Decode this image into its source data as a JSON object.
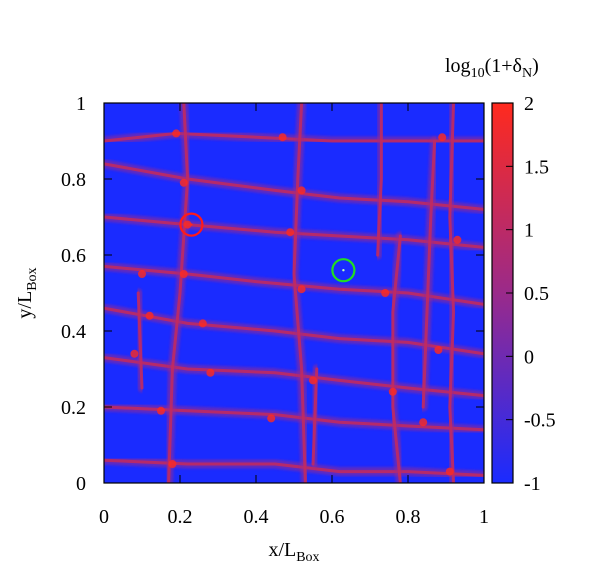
{
  "chart_data": {
    "type": "heatmap",
    "xlabel": {
      "base": "x/L",
      "sub": "Box"
    },
    "ylabel": {
      "base": "y/L",
      "sub": "Box"
    },
    "colorbar_title": {
      "pre": "log",
      "sub1": "10",
      "mid": "(1+δ",
      "sub2": "N",
      "post": ")"
    },
    "xlim": [
      0,
      1
    ],
    "ylim": [
      0,
      1
    ],
    "x_ticks": [
      "0",
      "0.2",
      "0.4",
      "0.6",
      "0.8",
      "1"
    ],
    "y_ticks": [
      "0",
      "0.2",
      "0.4",
      "0.6",
      "0.8",
      "1"
    ],
    "colorbar_range": [
      -1,
      2
    ],
    "colorbar_ticks": [
      "-1",
      "-0.5",
      "0",
      "0.5",
      "1",
      "1.5",
      "2"
    ],
    "colormap": {
      "low": "#1a2bff",
      "mid": "#9a2a8a",
      "high": "#ff2a1e"
    },
    "background_value": -1,
    "horizontal_filaments": [
      [
        [
          0,
          0.9
        ],
        [
          0.19,
          0.92
        ],
        [
          0.4,
          0.91
        ],
        [
          0.6,
          0.9
        ],
        [
          0.8,
          0.9
        ],
        [
          1,
          0.9
        ]
      ],
      [
        [
          0,
          0.84
        ],
        [
          0.22,
          0.8
        ],
        [
          0.45,
          0.77
        ],
        [
          0.62,
          0.75
        ],
        [
          0.8,
          0.74
        ],
        [
          1,
          0.72
        ]
      ],
      [
        [
          0,
          0.7
        ],
        [
          0.22,
          0.68
        ],
        [
          0.45,
          0.66
        ],
        [
          0.62,
          0.65
        ],
        [
          0.8,
          0.64
        ],
        [
          1,
          0.62
        ]
      ],
      [
        [
          0,
          0.57
        ],
        [
          0.22,
          0.55
        ],
        [
          0.4,
          0.53
        ],
        [
          0.62,
          0.51
        ],
        [
          0.8,
          0.5
        ],
        [
          1,
          0.47
        ]
      ],
      [
        [
          0,
          0.46
        ],
        [
          0.22,
          0.42
        ],
        [
          0.45,
          0.4
        ],
        [
          0.62,
          0.38
        ],
        [
          0.8,
          0.37
        ],
        [
          1,
          0.34
        ]
      ],
      [
        [
          0,
          0.33
        ],
        [
          0.22,
          0.3
        ],
        [
          0.45,
          0.29
        ],
        [
          0.62,
          0.27
        ],
        [
          0.8,
          0.25
        ],
        [
          1,
          0.23
        ]
      ],
      [
        [
          0,
          0.2
        ],
        [
          0.22,
          0.19
        ],
        [
          0.45,
          0.18
        ],
        [
          0.62,
          0.16
        ],
        [
          0.8,
          0.15
        ],
        [
          1,
          0.14
        ]
      ],
      [
        [
          0,
          0.06
        ],
        [
          0.22,
          0.05
        ],
        [
          0.45,
          0.05
        ],
        [
          0.62,
          0.03
        ],
        [
          0.8,
          0.03
        ],
        [
          1,
          0.02
        ]
      ]
    ],
    "vertical_filaments": [
      [
        [
          0.17,
          0
        ],
        [
          0.18,
          0.3
        ],
        [
          0.2,
          0.5
        ],
        [
          0.22,
          0.8
        ],
        [
          0.21,
          1
        ]
      ],
      [
        [
          0.1,
          0.25
        ],
        [
          0.09,
          0.5
        ]
      ],
      [
        [
          0.53,
          0
        ],
        [
          0.52,
          0.3
        ],
        [
          0.5,
          0.55
        ],
        [
          0.51,
          0.8
        ],
        [
          0.52,
          1
        ]
      ],
      [
        [
          0.55,
          0.05
        ],
        [
          0.56,
          0.3
        ]
      ],
      [
        [
          0.72,
          0.6
        ],
        [
          0.73,
          0.8
        ],
        [
          0.73,
          1
        ]
      ],
      [
        [
          0.78,
          0
        ],
        [
          0.76,
          0.2
        ],
        [
          0.76,
          0.45
        ],
        [
          0.78,
          0.65
        ]
      ],
      [
        [
          0.84,
          0.2
        ],
        [
          0.85,
          0.45
        ],
        [
          0.86,
          0.7
        ],
        [
          0.87,
          0.9
        ]
      ],
      [
        [
          0.92,
          0
        ],
        [
          0.91,
          0.2
        ],
        [
          0.92,
          0.45
        ],
        [
          0.91,
          0.7
        ],
        [
          0.92,
          1
        ]
      ]
    ],
    "nodes": [
      [
        0.19,
        0.92
      ],
      [
        0.47,
        0.91
      ],
      [
        0.89,
        0.91
      ],
      [
        0.21,
        0.79
      ],
      [
        0.52,
        0.77
      ],
      [
        0.22,
        0.68
      ],
      [
        0.49,
        0.66
      ],
      [
        0.93,
        0.64
      ],
      [
        0.1,
        0.55
      ],
      [
        0.21,
        0.55
      ],
      [
        0.52,
        0.51
      ],
      [
        0.74,
        0.5
      ],
      [
        0.12,
        0.44
      ],
      [
        0.26,
        0.42
      ],
      [
        0.88,
        0.35
      ],
      [
        0.08,
        0.34
      ],
      [
        0.28,
        0.29
      ],
      [
        0.55,
        0.27
      ],
      [
        0.76,
        0.24
      ],
      [
        0.15,
        0.19
      ],
      [
        0.44,
        0.17
      ],
      [
        0.84,
        0.16
      ],
      [
        0.18,
        0.05
      ],
      [
        0.91,
        0.03
      ]
    ],
    "markers": [
      {
        "x": 0.23,
        "y": 0.68,
        "color": "#ff1a1a"
      },
      {
        "x": 0.63,
        "y": 0.56,
        "color": "#22dd22"
      }
    ]
  }
}
